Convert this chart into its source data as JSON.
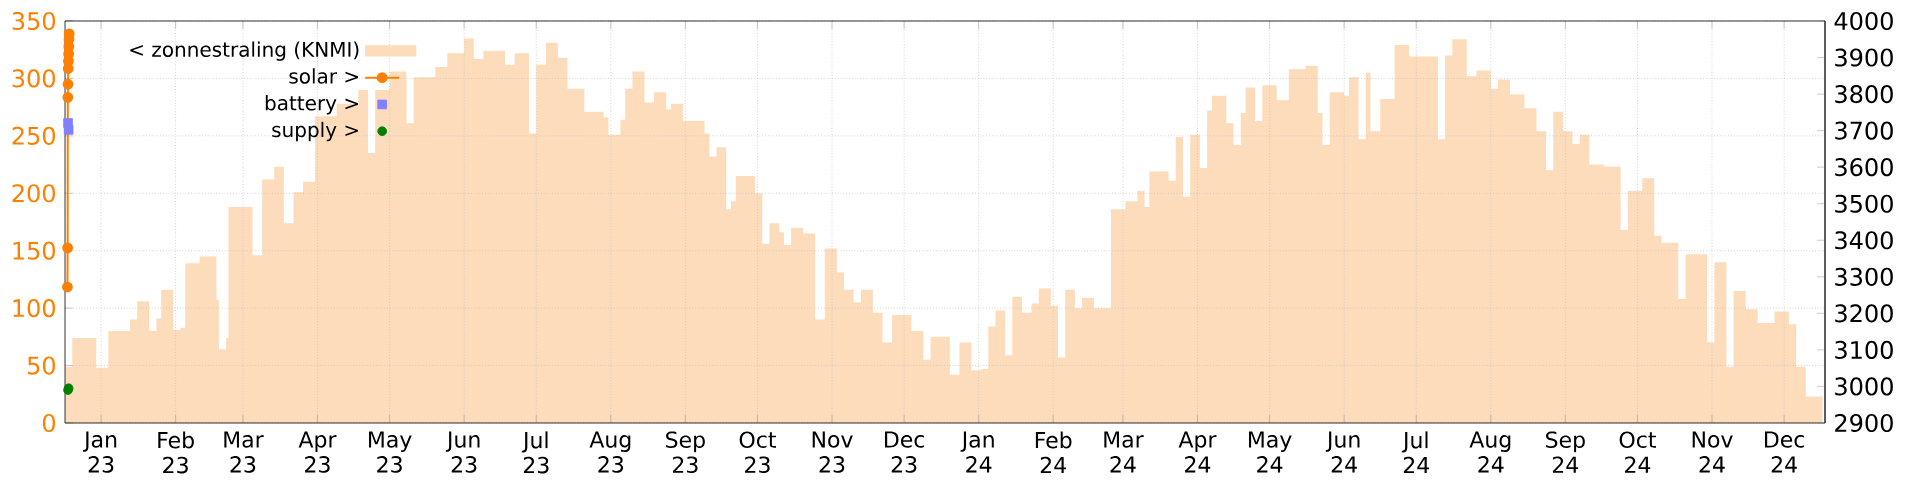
{
  "chart_data": {
    "type": "line",
    "grid": true,
    "legend": "top left",
    "xlim": [
      "2022-12-17",
      "2024-12-18"
    ],
    "xticks": [
      {
        "value": "2023-01-01",
        "label": "Jan 23"
      },
      {
        "value": "2023-02-01",
        "label": "Feb 23"
      },
      {
        "value": "2023-03-01",
        "label": "Mar 23"
      },
      {
        "value": "2023-04-01",
        "label": "Apr 23"
      },
      {
        "value": "2023-05-01",
        "label": "May 23"
      },
      {
        "value": "2023-06-01",
        "label": "Jun 23"
      },
      {
        "value": "2023-07-01",
        "label": "Jul 23"
      },
      {
        "value": "2023-08-01",
        "label": "Aug 23"
      },
      {
        "value": "2023-09-01",
        "label": "Sep 23"
      },
      {
        "value": "2023-10-01",
        "label": "Oct 23"
      },
      {
        "value": "2023-11-01",
        "label": "Nov 23"
      },
      {
        "value": "2023-12-01",
        "label": "Dec 23"
      },
      {
        "value": "2024-01-01",
        "label": "Jan 24"
      },
      {
        "value": "2024-02-01",
        "label": "Feb 24"
      },
      {
        "value": "2024-03-01",
        "label": "Mar 24"
      },
      {
        "value": "2024-04-01",
        "label": "Apr 24"
      },
      {
        "value": "2024-05-01",
        "label": "May 24"
      },
      {
        "value": "2024-06-01",
        "label": "Jun 24"
      },
      {
        "value": "2024-07-01",
        "label": "Jul 24"
      },
      {
        "value": "2024-08-01",
        "label": "Aug 24"
      },
      {
        "value": "2024-09-01",
        "label": "Sep 24"
      },
      {
        "value": "2024-10-01",
        "label": "Oct 24"
      },
      {
        "value": "2024-11-01",
        "label": "Nov 24"
      },
      {
        "value": "2024-12-01",
        "label": "Dec 24"
      }
    ],
    "ylim": [
      0,
      350
    ],
    "yticks": [
      0,
      50,
      100,
      150,
      200,
      250,
      300,
      350
    ],
    "y2lim": [
      2900,
      4000
    ],
    "y2ticks": [
      2900,
      3000,
      3100,
      3200,
      3300,
      3400,
      3500,
      3600,
      3700,
      3800,
      3900,
      4000
    ],
    "series": [
      {
        "name": "< zonnestraling (KNMI)",
        "type": "area",
        "color": "#fddcbc",
        "x": [
          "2022-12-17",
          "2022-12-20",
          "2022-12-30",
          "2023-01-04",
          "2023-01-13",
          "2023-01-16",
          "2023-01-21",
          "2023-01-24",
          "2023-01-26",
          "2023-01-31",
          "2023-02-03",
          "2023-02-05",
          "2023-02-11",
          "2023-02-18",
          "2023-02-19",
          "2023-02-22",
          "2023-02-23",
          "2023-03-05",
          "2023-03-09",
          "2023-03-14",
          "2023-03-18",
          "2023-03-22",
          "2023-03-26",
          "2023-03-31",
          "2023-04-09",
          "2023-04-18",
          "2023-04-22",
          "2023-04-25",
          "2023-05-01",
          "2023-05-08",
          "2023-05-11",
          "2023-05-20",
          "2023-05-25",
          "2023-06-01",
          "2023-06-05",
          "2023-06-09",
          "2023-06-18",
          "2023-06-22",
          "2023-06-28",
          "2023-07-01",
          "2023-07-05",
          "2023-07-10",
          "2023-07-14",
          "2023-07-21",
          "2023-07-29",
          "2023-07-31",
          "2023-08-05",
          "2023-08-07",
          "2023-08-10",
          "2023-08-15",
          "2023-08-19",
          "2023-08-24",
          "2023-08-26",
          "2023-08-31",
          "2023-09-09",
          "2023-09-11",
          "2023-09-14",
          "2023-09-18",
          "2023-09-20",
          "2023-09-22",
          "2023-09-30",
          "2023-10-03",
          "2023-10-06",
          "2023-10-10",
          "2023-10-12",
          "2023-10-15",
          "2023-10-20",
          "2023-10-25",
          "2023-10-29",
          "2023-11-03",
          "2023-11-06",
          "2023-11-10",
          "2023-11-13",
          "2023-11-18",
          "2023-11-22",
          "2023-11-26",
          "2023-12-04",
          "2023-12-09",
          "2023-12-12",
          "2023-12-20",
          "2023-12-24",
          "2023-12-29",
          "2024-01-02",
          "2024-01-05",
          "2024-01-08",
          "2024-01-12",
          "2024-01-15",
          "2024-01-19",
          "2024-01-23",
          "2024-01-26",
          "2024-01-31",
          "2024-02-03",
          "2024-02-06",
          "2024-02-10",
          "2024-02-13",
          "2024-02-18",
          "2024-02-25",
          "2024-03-02",
          "2024-03-07",
          "2024-03-10",
          "2024-03-12",
          "2024-03-20",
          "2024-03-23",
          "2024-03-26",
          "2024-03-29",
          "2024-04-02",
          "2024-04-05",
          "2024-04-07",
          "2024-04-13",
          "2024-04-16",
          "2024-04-19",
          "2024-04-21",
          "2024-04-25",
          "2024-04-28",
          "2024-05-04",
          "2024-05-09",
          "2024-05-16",
          "2024-05-21",
          "2024-05-23",
          "2024-05-26",
          "2024-06-01",
          "2024-06-03",
          "2024-06-07",
          "2024-06-10",
          "2024-06-12",
          "2024-06-16",
          "2024-06-22",
          "2024-06-28",
          "2024-07-10",
          "2024-07-13",
          "2024-07-16",
          "2024-07-22",
          "2024-07-26",
          "2024-08-01",
          "2024-08-04",
          "2024-08-09",
          "2024-08-15",
          "2024-08-20",
          "2024-08-24",
          "2024-08-27",
          "2024-08-31",
          "2024-09-04",
          "2024-09-07",
          "2024-09-11",
          "2024-09-17",
          "2024-09-24",
          "2024-09-27",
          "2024-10-03",
          "2024-10-08",
          "2024-10-11",
          "2024-10-18",
          "2024-10-21",
          "2024-10-30",
          "2024-11-02",
          "2024-11-07",
          "2024-11-10",
          "2024-11-15",
          "2024-11-20",
          "2024-11-27",
          "2024-12-03",
          "2024-12-06",
          "2024-12-10",
          "2024-12-17"
        ],
        "values": [
          49,
          74,
          48,
          80,
          90,
          106,
          80,
          91,
          116,
          81,
          83,
          139,
          145,
          107,
          64,
          74,
          188,
          146,
          212,
          223,
          174,
          201,
          210,
          267,
          278,
          290,
          235,
          290,
          306,
          261,
          301,
          310,
          322,
          335,
          317,
          324,
          312,
          322,
          252,
          312,
          331,
          318,
          291,
          271,
          266,
          251,
          264,
          291,
          306,
          279,
          288,
          273,
          278,
          263,
          252,
          232,
          240,
          186,
          193,
          215,
          200,
          156,
          174,
          166,
          155,
          170,
          165,
          90,
          152,
          131,
          116,
          105,
          116,
          96,
          70,
          94,
          80,
          55,
          75,
          42,
          70,
          46,
          47,
          84,
          98,
          59,
          110,
          96,
          104,
          117,
          102,
          57,
          116,
          100,
          109,
          100,
          186,
          193,
          202,
          188,
          219,
          211,
          249,
          197,
          251,
          222,
          272,
          285,
          261,
          242,
          270,
          292,
          263,
          294,
          281,
          308,
          311,
          270,
          242,
          288,
          285,
          301,
          247,
          305,
          254,
          282,
          329,
          319,
          247,
          320,
          334,
          302,
          307,
          291,
          299,
          286,
          274,
          254,
          220,
          271,
          254,
          243,
          251,
          225,
          223,
          168,
          202,
          213,
          163,
          157,
          108,
          147,
          70,
          140,
          49,
          115,
          99,
          87,
          97,
          86,
          49,
          23,
          23
        ]
      },
      {
        "name": "solar >",
        "axis": "y2",
        "color": "#ff8000",
        "marker": "circle",
        "x": [
          "2022-12-18T00:00",
          "2022-12-18T02:00",
          "2022-12-18T04:00",
          "2022-12-18T06:00",
          "2022-12-18T08:00",
          "2022-12-18T10:00",
          "2022-12-18T12:00",
          "2022-12-18T14:00",
          "2022-12-18T16:00",
          "2022-12-18T18:00"
        ],
        "values": [
          3272,
          3379,
          3791,
          3827,
          3870,
          3890,
          3910,
          3930,
          3950,
          3965
        ]
      },
      {
        "name": "battery >",
        "type": "scatter",
        "axis": "y2",
        "color": "#8080ff",
        "marker": "square",
        "x": [
          "2022-12-18T06:00",
          "2022-12-18T12:00"
        ],
        "values": [
          3721,
          3702
        ]
      },
      {
        "name": "supply >",
        "type": "scatter",
        "axis": "y2",
        "color": "#008000",
        "marker": "circle",
        "x": [
          "2022-12-18T06:00",
          "2022-12-18T12:00"
        ],
        "values": [
          2990,
          2995
        ]
      }
    ]
  }
}
